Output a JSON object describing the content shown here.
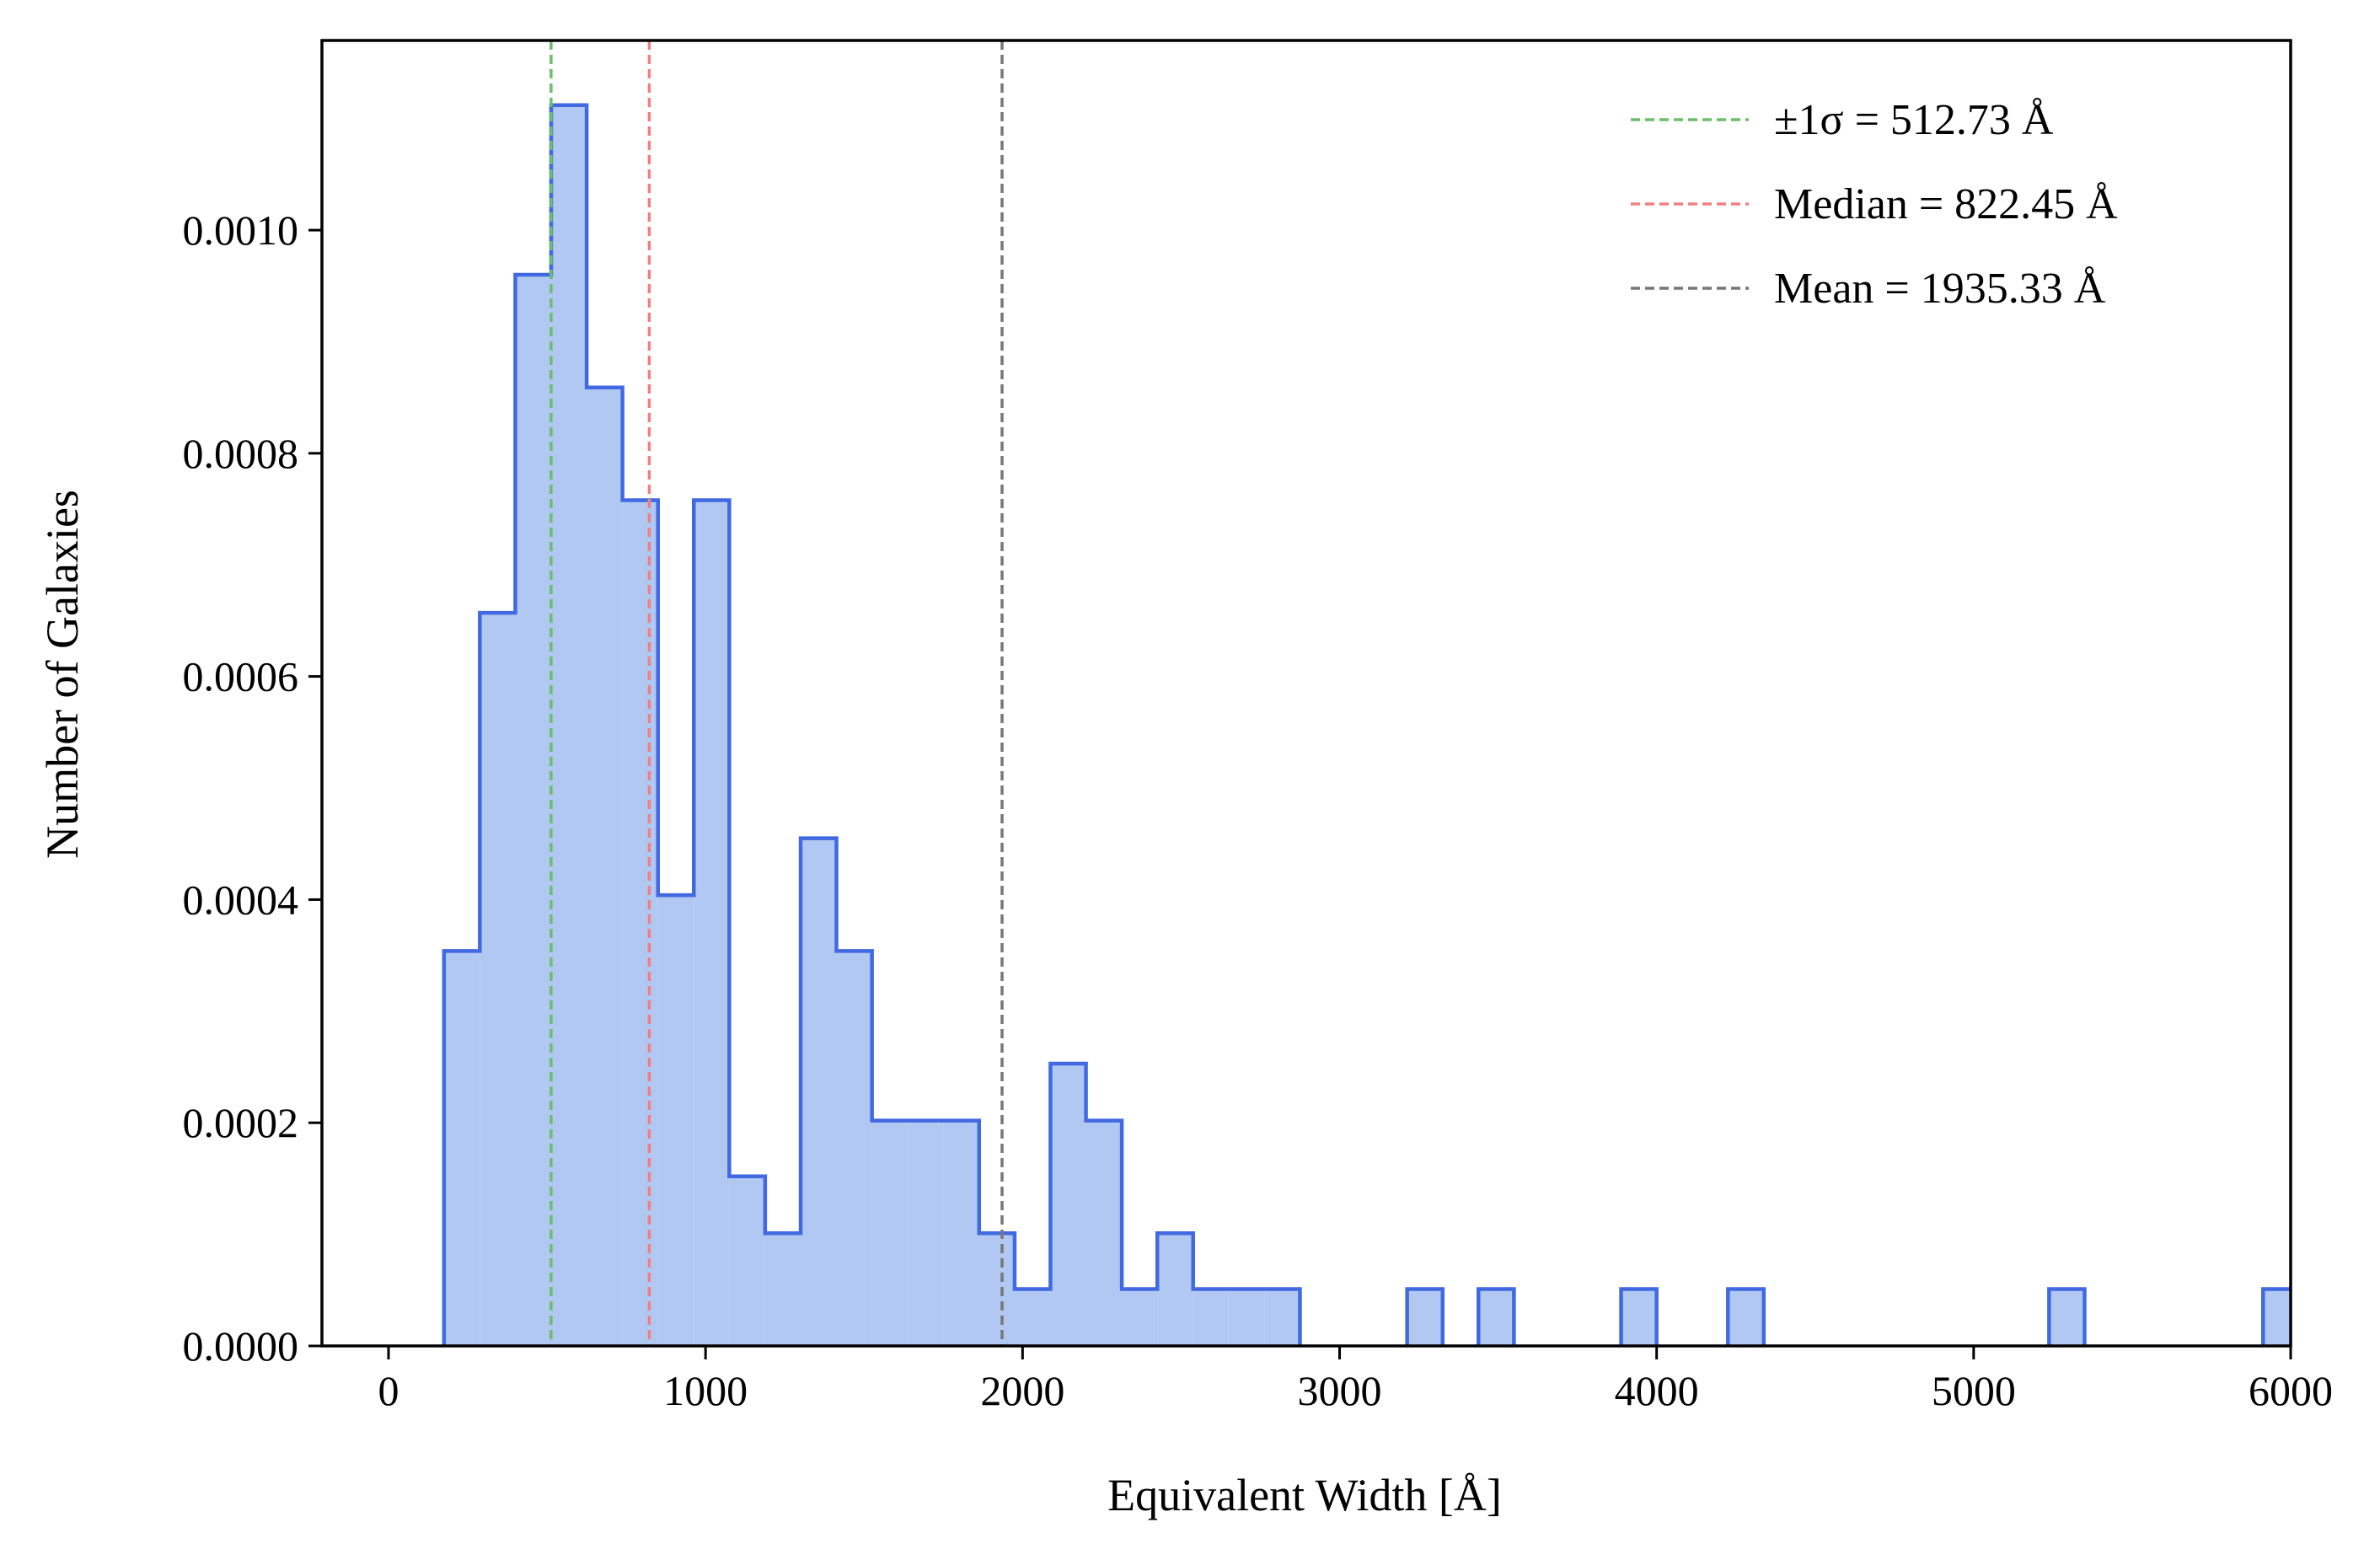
{
  "chart_data": {
    "type": "histogram",
    "xlabel": "Equivalent Width [Å]",
    "ylabel": "Number of Galaxies",
    "xlim": [
      -210,
      6000
    ],
    "ylim": [
      0,
      0.00117
    ],
    "xticks": [
      0,
      1000,
      2000,
      3000,
      4000,
      5000,
      6000
    ],
    "yticks": [
      0.0,
      0.0002,
      0.0004,
      0.0006,
      0.0008,
      0.001
    ],
    "xtick_labels": [
      "0",
      "1000",
      "2000",
      "3000",
      "4000",
      "5000",
      "6000"
    ],
    "ytick_labels": [
      "0.0000",
      "0.0002",
      "0.0004",
      "0.0006",
      "0.0008",
      "0.0010"
    ],
    "bin_width": 112.5,
    "bins": [
      {
        "x0": 175,
        "x1": 288,
        "y": 0.000354
      },
      {
        "x0": 288,
        "x1": 400,
        "y": 0.000657
      },
      {
        "x0": 400,
        "x1": 513,
        "y": 0.00096
      },
      {
        "x0": 513,
        "x1": 625,
        "y": 0.001112
      },
      {
        "x0": 625,
        "x1": 738,
        "y": 0.000859
      },
      {
        "x0": 738,
        "x1": 850,
        "y": 0.000758
      },
      {
        "x0": 850,
        "x1": 963,
        "y": 0.000404
      },
      {
        "x0": 963,
        "x1": 1075,
        "y": 0.000758
      },
      {
        "x0": 1075,
        "x1": 1188,
        "y": 0.000152
      },
      {
        "x0": 1188,
        "x1": 1300,
        "y": 0.000101
      },
      {
        "x0": 1300,
        "x1": 1413,
        "y": 0.000455
      },
      {
        "x0": 1413,
        "x1": 1525,
        "y": 0.000354
      },
      {
        "x0": 1525,
        "x1": 1638,
        "y": 0.000202
      },
      {
        "x0": 1638,
        "x1": 1750,
        "y": 0.000202
      },
      {
        "x0": 1750,
        "x1": 1863,
        "y": 0.000202
      },
      {
        "x0": 1863,
        "x1": 1975,
        "y": 0.000101
      },
      {
        "x0": 1975,
        "x1": 2088,
        "y": 5.1e-05
      },
      {
        "x0": 2088,
        "x1": 2200,
        "y": 0.000253
      },
      {
        "x0": 2200,
        "x1": 2313,
        "y": 0.000202
      },
      {
        "x0": 2313,
        "x1": 2425,
        "y": 5.1e-05
      },
      {
        "x0": 2425,
        "x1": 2538,
        "y": 0.000101
      },
      {
        "x0": 2538,
        "x1": 2650,
        "y": 5.1e-05
      },
      {
        "x0": 2650,
        "x1": 2763,
        "y": 5.1e-05
      },
      {
        "x0": 2763,
        "x1": 2875,
        "y": 5.1e-05
      },
      {
        "x0": 3213,
        "x1": 3325,
        "y": 5.1e-05
      },
      {
        "x0": 3438,
        "x1": 3550,
        "y": 5.1e-05
      },
      {
        "x0": 3888,
        "x1": 4000,
        "y": 5.1e-05
      },
      {
        "x0": 4225,
        "x1": 4338,
        "y": 5.1e-05
      },
      {
        "x0": 5238,
        "x1": 5350,
        "y": 5.1e-05
      },
      {
        "x0": 5913,
        "x1": 6025,
        "y": 5.1e-05
      }
    ],
    "vlines": [
      {
        "label": "±1σ = 512.73 Å",
        "x": 512.73,
        "color": "#6abf6a"
      },
      {
        "label": "Median = 822.45 Å",
        "x": 822.45,
        "color": "#f08080"
      },
      {
        "label": "Mean = 1935.33 Å",
        "x": 1935.33,
        "color": "#777777"
      }
    ],
    "legend_position": "top-right",
    "grid": false,
    "colors": {
      "fill": "#b0c8f2",
      "edge": "#4169e1"
    }
  }
}
